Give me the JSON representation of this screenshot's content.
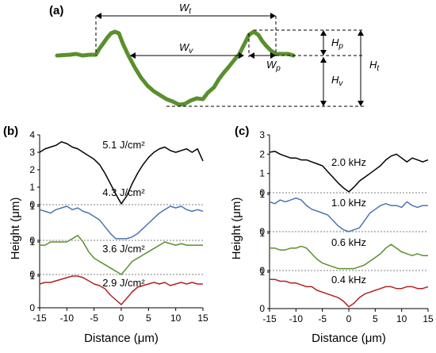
{
  "panel_a": {
    "label": "(a)",
    "dims": {
      "wt": {
        "main": "W",
        "sub": "t"
      },
      "wv": {
        "main": "W",
        "sub": "v"
      },
      "wp": {
        "main": "W",
        "sub": "p"
      },
      "hp": {
        "main": "H",
        "sub": "p"
      },
      "hv": {
        "main": "H",
        "sub": "v"
      },
      "ht": {
        "main": "H",
        "sub": "t"
      }
    },
    "colors": {
      "profile": "#5a8f2e"
    }
  },
  "chart_data": [
    {
      "id": "b",
      "label": "(b)",
      "type": "line",
      "xlabel": "Distance (μm)",
      "ylabel": "Height (μm)",
      "xlim": [
        -15,
        15
      ],
      "xticks": [
        "-15",
        "-10",
        "-5",
        "0",
        "5",
        "10",
        "15"
      ],
      "stack_ticks": [
        [
          "0",
          "1",
          "2",
          "3",
          "4"
        ],
        [
          "0",
          "1"
        ],
        [
          "0",
          "1"
        ],
        [
          "0",
          "1"
        ]
      ],
      "series": [
        {
          "name": "5.1 J/cm²",
          "color": "#000000",
          "x": [
            -15,
            -14,
            -13,
            -12,
            -11,
            -10,
            -9,
            -8,
            -7,
            -6,
            -5,
            -4,
            -3,
            -2,
            -1,
            0,
            1,
            2,
            3,
            4,
            5,
            6,
            7,
            8,
            9,
            10,
            11,
            12,
            13,
            14,
            15
          ],
          "y": [
            3.0,
            3.2,
            3.3,
            3.4,
            3.6,
            3.5,
            3.3,
            3.2,
            3.0,
            2.8,
            2.6,
            2.3,
            1.8,
            1.2,
            0.6,
            0.05,
            0.5,
            1.2,
            1.8,
            2.3,
            2.7,
            3.0,
            3.2,
            3.3,
            3.1,
            3.0,
            3.1,
            3.2,
            3.0,
            3.2,
            2.5
          ]
        },
        {
          "name": "4.3 J/cm²",
          "color": "#4a74b0",
          "x": [
            -15,
            -14,
            -13,
            -12,
            -11,
            -10,
            -9,
            -8,
            -7,
            -6,
            -5,
            -4,
            -3,
            -2,
            -1,
            0,
            1,
            2,
            3,
            4,
            5,
            6,
            7,
            8,
            9,
            10,
            11,
            12,
            13,
            14,
            15
          ],
          "y": [
            0.9,
            0.85,
            0.8,
            0.9,
            0.95,
            1.0,
            0.9,
            0.95,
            0.85,
            0.8,
            0.7,
            0.6,
            0.4,
            0.2,
            0.05,
            0.05,
            0.05,
            0.1,
            0.2,
            0.35,
            0.5,
            0.65,
            0.8,
            0.9,
            1.0,
            0.95,
            1.0,
            0.9,
            0.85,
            0.9,
            0.85
          ]
        },
        {
          "name": "3.6 J/cm²",
          "color": "#5a8f2e",
          "x": [
            -15,
            -14,
            -13,
            -12,
            -11,
            -10,
            -9,
            -8,
            -7,
            -6,
            -5,
            -4,
            -3,
            -2,
            -1,
            0,
            1,
            2,
            3,
            4,
            5,
            6,
            7,
            8,
            9,
            10,
            11,
            12,
            13,
            14,
            15
          ],
          "y": [
            0.9,
            0.9,
            1.0,
            1.0,
            1.0,
            1.0,
            1.1,
            1.2,
            1.0,
            0.7,
            0.5,
            0.4,
            0.3,
            0.2,
            0.1,
            0.0,
            0.2,
            0.4,
            0.5,
            0.6,
            0.7,
            0.8,
            0.9,
            1.0,
            0.95,
            0.9,
            0.95,
            0.9,
            0.9,
            0.9,
            0.9
          ]
        },
        {
          "name": "2.9 J/cm²",
          "color": "#b22222",
          "x": [
            -15,
            -14,
            -13,
            -12,
            -11,
            -10,
            -9,
            -8,
            -7,
            -6,
            -5,
            -4,
            -3,
            -2,
            -1,
            0,
            1,
            2,
            3,
            4,
            5,
            6,
            7,
            8,
            9,
            10,
            11,
            12,
            13,
            14,
            15
          ],
          "y": [
            0.75,
            0.8,
            0.8,
            0.85,
            0.9,
            0.95,
            1.0,
            1.0,
            0.95,
            0.85,
            0.75,
            0.7,
            0.6,
            0.4,
            0.25,
            0.1,
            0.3,
            0.5,
            0.65,
            0.7,
            0.75,
            0.8,
            0.75,
            0.8,
            0.7,
            0.75,
            0.8,
            0.75,
            0.8,
            0.75,
            0.75
          ]
        }
      ]
    },
    {
      "id": "c",
      "label": "(c)",
      "type": "line",
      "xlabel": "Distance (μm)",
      "ylabel": "Height (μm)",
      "xlim": [
        -15,
        15
      ],
      "xticks": [
        "-15",
        "-10",
        "-5",
        "0",
        "5",
        "10",
        "15"
      ],
      "stack_ticks": [
        [
          "0",
          "1",
          "2",
          "3"
        ],
        [
          "0",
          "1"
        ],
        [
          "0",
          "1"
        ],
        [
          "0",
          "1"
        ]
      ],
      "series": [
        {
          "name": "2.0 kHz",
          "color": "#000000",
          "x": [
            -15,
            -14,
            -13,
            -12,
            -11,
            -10,
            -9,
            -8,
            -7,
            -6,
            -5,
            -4,
            -3,
            -2,
            -1,
            0,
            1,
            2,
            3,
            4,
            5,
            6,
            7,
            8,
            9,
            10,
            11,
            12,
            13,
            14,
            15
          ],
          "y": [
            2.1,
            2.15,
            2.0,
            1.9,
            1.8,
            1.8,
            1.7,
            1.7,
            1.6,
            1.5,
            1.4,
            1.1,
            0.8,
            0.5,
            0.25,
            0.05,
            0.3,
            0.6,
            0.8,
            1.0,
            1.2,
            1.4,
            1.7,
            1.9,
            2.0,
            1.8,
            1.6,
            1.8,
            1.7,
            1.6,
            1.7
          ]
        },
        {
          "name": "1.0 kHz",
          "color": "#4a74b0",
          "x": [
            -15,
            -14,
            -13,
            -12,
            -11,
            -10,
            -9,
            -8,
            -7,
            -6,
            -5,
            -4,
            -3,
            -2,
            -1,
            0,
            1,
            2,
            3,
            4,
            5,
            6,
            7,
            8,
            9,
            10,
            11,
            12,
            13,
            14,
            15
          ],
          "y": [
            0.8,
            0.75,
            0.85,
            0.8,
            0.85,
            0.9,
            0.85,
            0.7,
            0.6,
            0.55,
            0.5,
            0.45,
            0.3,
            0.15,
            0.05,
            0.0,
            0.05,
            0.1,
            0.3,
            0.5,
            0.6,
            0.7,
            0.75,
            0.7,
            0.7,
            0.65,
            0.8,
            0.7,
            0.65,
            0.7,
            0.7
          ]
        },
        {
          "name": "0.6 kHz",
          "color": "#5a8f2e",
          "x": [
            -15,
            -14,
            -13,
            -12,
            -11,
            -10,
            -9,
            -8,
            -7,
            -6,
            -5,
            -4,
            -3,
            -2,
            -1,
            0,
            1,
            2,
            3,
            4,
            5,
            6,
            7,
            8,
            9,
            10,
            11,
            12,
            13,
            14,
            15
          ],
          "y": [
            0.6,
            0.6,
            0.55,
            0.55,
            0.6,
            0.6,
            0.65,
            0.6,
            0.45,
            0.3,
            0.2,
            0.15,
            0.1,
            0.05,
            0.05,
            0.05,
            0.05,
            0.1,
            0.15,
            0.25,
            0.35,
            0.45,
            0.6,
            0.7,
            0.6,
            0.5,
            0.45,
            0.4,
            0.45,
            0.4,
            0.4
          ]
        },
        {
          "name": "0.4 kHz",
          "color": "#b22222",
          "x": [
            -15,
            -14,
            -13,
            -12,
            -11,
            -10,
            -9,
            -8,
            -7,
            -6,
            -5,
            -4,
            -3,
            -2,
            -1,
            0,
            1,
            2,
            3,
            4,
            5,
            6,
            7,
            8,
            9,
            10,
            11,
            12,
            13,
            14,
            15
          ],
          "y": [
            0.8,
            0.8,
            0.75,
            0.75,
            0.7,
            0.7,
            0.65,
            0.6,
            0.6,
            0.5,
            0.45,
            0.4,
            0.35,
            0.3,
            0.2,
            0.05,
            0.15,
            0.3,
            0.4,
            0.45,
            0.5,
            0.55,
            0.6,
            0.6,
            0.55,
            0.55,
            0.6,
            0.6,
            0.55,
            0.55,
            0.6
          ]
        }
      ]
    }
  ]
}
